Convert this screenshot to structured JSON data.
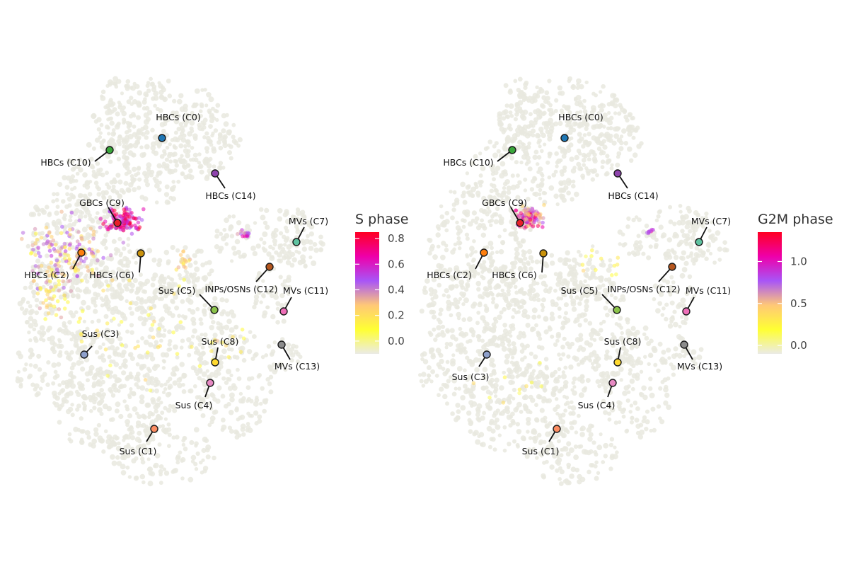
{
  "chart_data": [
    {
      "type": "scatter",
      "subtype": "umap-embedding",
      "color_variable": "S phase",
      "colorbar": {
        "title": "S phase",
        "ticks": [
          "0.0",
          "0.2",
          "0.4",
          "0.6",
          "0.8"
        ],
        "tick_values": [
          0.0,
          0.2,
          0.4,
          0.6,
          0.8
        ],
        "range": [
          -0.1,
          0.85
        ],
        "colors": [
          "#ebebe6",
          "#ffff33",
          "#ffc877",
          "#a855f7",
          "#ee00aa",
          "#ff0022"
        ]
      },
      "clusters": [
        {
          "label": "HBCs (C0)",
          "color": "#1f77b4"
        },
        {
          "label": "HBCs (C10)",
          "color": "#3aa63a"
        },
        {
          "label": "HBCs (C14)",
          "color": "#8e44ad"
        },
        {
          "label": "GBCs (C9)",
          "color": "#e8202a"
        },
        {
          "label": "HBCs (C2)",
          "color": "#ff7f0e"
        },
        {
          "label": "HBCs (C6)",
          "color": "#c9920c"
        },
        {
          "label": "MVs (C7)",
          "color": "#5fc2a0"
        },
        {
          "label": "INPs/OSNs (C12)",
          "color": "#b5561d"
        },
        {
          "label": "MVs (C11)",
          "color": "#ee6fb8"
        },
        {
          "label": "Sus (C5)",
          "color": "#8bc34a"
        },
        {
          "label": "Sus (C8)",
          "color": "#ffd92f"
        },
        {
          "label": "MVs (C13)",
          "color": "#8c8c8c"
        },
        {
          "label": "Sus (C3)",
          "color": "#8ea0cb"
        },
        {
          "label": "Sus (C4)",
          "color": "#e78ac3"
        },
        {
          "label": "Sus (C1)",
          "color": "#fc8d62"
        }
      ]
    },
    {
      "type": "scatter",
      "subtype": "umap-embedding",
      "color_variable": "G2M phase",
      "colorbar": {
        "title": "G2M phase",
        "ticks": [
          "0.0",
          "0.5",
          "1.0"
        ],
        "tick_values": [
          0.0,
          0.5,
          1.0
        ],
        "range": [
          -0.1,
          1.35
        ],
        "colors": [
          "#ebebe6",
          "#ffff33",
          "#ffc877",
          "#a855f7",
          "#ee00aa",
          "#ff0022"
        ]
      },
      "clusters": [
        {
          "label": "HBCs (C0)",
          "color": "#1f77b4"
        },
        {
          "label": "HBCs (C10)",
          "color": "#3aa63a"
        },
        {
          "label": "HBCs (C14)",
          "color": "#8e44ad"
        },
        {
          "label": "GBCs (C9)",
          "color": "#e8202a"
        },
        {
          "label": "HBCs (C2)",
          "color": "#ff7f0e"
        },
        {
          "label": "HBCs (C6)",
          "color": "#c9920c"
        },
        {
          "label": "MVs (C7)",
          "color": "#5fc2a0"
        },
        {
          "label": "INPs/OSNs (C12)",
          "color": "#b5561d"
        },
        {
          "label": "MVs (C11)",
          "color": "#ee6fb8"
        },
        {
          "label": "Sus (C5)",
          "color": "#8bc34a"
        },
        {
          "label": "Sus (C8)",
          "color": "#ffd92f"
        },
        {
          "label": "MVs (C13)",
          "color": "#8c8c8c"
        },
        {
          "label": "Sus (C3)",
          "color": "#8ea0cb"
        },
        {
          "label": "Sus (C4)",
          "color": "#e78ac3"
        },
        {
          "label": "Sus (C1)",
          "color": "#fc8d62"
        }
      ]
    }
  ]
}
